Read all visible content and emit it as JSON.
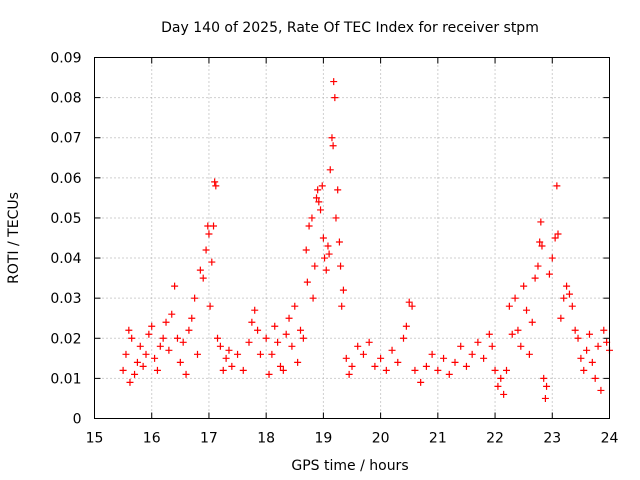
{
  "chart_data": {
    "type": "scatter",
    "title": "Day 140 of 2025, Rate Of TEC Index for receiver stpm",
    "xlabel": "GPS time / hours",
    "ylabel": "ROTI / TECUs",
    "xlim": [
      15,
      24
    ],
    "ylim": [
      0,
      0.09
    ],
    "xticks": [
      15,
      16,
      17,
      18,
      19,
      20,
      21,
      22,
      23,
      24
    ],
    "xtick_labels": [
      "15",
      "16",
      "17",
      "18",
      "19",
      "20",
      "21",
      "22",
      "23",
      "24"
    ],
    "yticks": [
      0,
      0.01,
      0.02,
      0.03,
      0.04,
      0.05,
      0.06,
      0.07,
      0.08,
      0.09
    ],
    "ytick_labels": [
      "0",
      "0.01",
      "0.02",
      "0.03",
      "0.04",
      "0.05",
      "0.06",
      "0.07",
      "0.08",
      "0.09"
    ],
    "grid": true,
    "marker": "+",
    "marker_color": "#ff0000",
    "series": [
      {
        "name": "ROTI",
        "points": [
          [
            15.5,
            0.012
          ],
          [
            15.55,
            0.016
          ],
          [
            15.6,
            0.022
          ],
          [
            15.62,
            0.009
          ],
          [
            15.65,
            0.02
          ],
          [
            15.7,
            0.011
          ],
          [
            15.75,
            0.014
          ],
          [
            15.8,
            0.018
          ],
          [
            15.85,
            0.013
          ],
          [
            15.9,
            0.016
          ],
          [
            15.95,
            0.021
          ],
          [
            16.0,
            0.023
          ],
          [
            16.05,
            0.015
          ],
          [
            16.1,
            0.012
          ],
          [
            16.15,
            0.018
          ],
          [
            16.2,
            0.02
          ],
          [
            16.25,
            0.024
          ],
          [
            16.3,
            0.017
          ],
          [
            16.35,
            0.026
          ],
          [
            16.4,
            0.033
          ],
          [
            16.45,
            0.02
          ],
          [
            16.5,
            0.014
          ],
          [
            16.55,
            0.019
          ],
          [
            16.6,
            0.011
          ],
          [
            16.65,
            0.022
          ],
          [
            16.7,
            0.025
          ],
          [
            16.75,
            0.03
          ],
          [
            16.8,
            0.016
          ],
          [
            16.85,
            0.037
          ],
          [
            16.9,
            0.035
          ],
          [
            16.95,
            0.042
          ],
          [
            16.98,
            0.048
          ],
          [
            17.0,
            0.046
          ],
          [
            17.02,
            0.028
          ],
          [
            17.05,
            0.039
          ],
          [
            17.08,
            0.048
          ],
          [
            17.1,
            0.059
          ],
          [
            17.12,
            0.058
          ],
          [
            17.15,
            0.02
          ],
          [
            17.2,
            0.018
          ],
          [
            17.25,
            0.012
          ],
          [
            17.3,
            0.015
          ],
          [
            17.35,
            0.017
          ],
          [
            17.4,
            0.013
          ],
          [
            17.5,
            0.016
          ],
          [
            17.6,
            0.012
          ],
          [
            17.7,
            0.019
          ],
          [
            17.75,
            0.024
          ],
          [
            17.8,
            0.027
          ],
          [
            17.85,
            0.022
          ],
          [
            17.9,
            0.016
          ],
          [
            18.0,
            0.02
          ],
          [
            18.05,
            0.011
          ],
          [
            18.1,
            0.016
          ],
          [
            18.15,
            0.023
          ],
          [
            18.2,
            0.019
          ],
          [
            18.25,
            0.013
          ],
          [
            18.3,
            0.012
          ],
          [
            18.35,
            0.021
          ],
          [
            18.4,
            0.025
          ],
          [
            18.45,
            0.018
          ],
          [
            18.5,
            0.028
          ],
          [
            18.55,
            0.014
          ],
          [
            18.6,
            0.022
          ],
          [
            18.65,
            0.02
          ],
          [
            18.7,
            0.042
          ],
          [
            18.72,
            0.034
          ],
          [
            18.75,
            0.048
          ],
          [
            18.8,
            0.05
          ],
          [
            18.82,
            0.03
          ],
          [
            18.85,
            0.038
          ],
          [
            18.88,
            0.055
          ],
          [
            18.9,
            0.057
          ],
          [
            18.92,
            0.054
          ],
          [
            18.95,
            0.052
          ],
          [
            18.98,
            0.058
          ],
          [
            19.0,
            0.045
          ],
          [
            19.02,
            0.04
          ],
          [
            19.05,
            0.037
          ],
          [
            19.08,
            0.043
          ],
          [
            19.1,
            0.041
          ],
          [
            19.12,
            0.062
          ],
          [
            19.15,
            0.07
          ],
          [
            19.17,
            0.068
          ],
          [
            19.18,
            0.084
          ],
          [
            19.2,
            0.08
          ],
          [
            19.22,
            0.05
          ],
          [
            19.25,
            0.057
          ],
          [
            19.28,
            0.044
          ],
          [
            19.3,
            0.038
          ],
          [
            19.32,
            0.028
          ],
          [
            19.35,
            0.032
          ],
          [
            19.4,
            0.015
          ],
          [
            19.45,
            0.011
          ],
          [
            19.5,
            0.013
          ],
          [
            19.6,
            0.018
          ],
          [
            19.7,
            0.016
          ],
          [
            19.8,
            0.019
          ],
          [
            19.9,
            0.013
          ],
          [
            20.0,
            0.015
          ],
          [
            20.1,
            0.012
          ],
          [
            20.2,
            0.017
          ],
          [
            20.3,
            0.014
          ],
          [
            20.4,
            0.02
          ],
          [
            20.45,
            0.023
          ],
          [
            20.5,
            0.029
          ],
          [
            20.55,
            0.028
          ],
          [
            20.6,
            0.012
          ],
          [
            20.7,
            0.009
          ],
          [
            20.8,
            0.013
          ],
          [
            20.9,
            0.016
          ],
          [
            21.0,
            0.012
          ],
          [
            21.1,
            0.015
          ],
          [
            21.2,
            0.011
          ],
          [
            21.3,
            0.014
          ],
          [
            21.4,
            0.018
          ],
          [
            21.5,
            0.013
          ],
          [
            21.6,
            0.016
          ],
          [
            21.7,
            0.019
          ],
          [
            21.8,
            0.015
          ],
          [
            21.9,
            0.021
          ],
          [
            21.95,
            0.018
          ],
          [
            22.0,
            0.012
          ],
          [
            22.05,
            0.008
          ],
          [
            22.1,
            0.01
          ],
          [
            22.15,
            0.006
          ],
          [
            22.2,
            0.012
          ],
          [
            22.25,
            0.028
          ],
          [
            22.3,
            0.021
          ],
          [
            22.35,
            0.03
          ],
          [
            22.4,
            0.022
          ],
          [
            22.45,
            0.018
          ],
          [
            22.5,
            0.033
          ],
          [
            22.55,
            0.027
          ],
          [
            22.6,
            0.016
          ],
          [
            22.65,
            0.024
          ],
          [
            22.7,
            0.035
          ],
          [
            22.75,
            0.038
          ],
          [
            22.78,
            0.044
          ],
          [
            22.8,
            0.049
          ],
          [
            22.82,
            0.043
          ],
          [
            22.85,
            0.01
          ],
          [
            22.88,
            0.005
          ],
          [
            22.9,
            0.008
          ],
          [
            22.95,
            0.036
          ],
          [
            23.0,
            0.04
          ],
          [
            23.05,
            0.045
          ],
          [
            23.08,
            0.058
          ],
          [
            23.1,
            0.046
          ],
          [
            23.15,
            0.025
          ],
          [
            23.2,
            0.03
          ],
          [
            23.25,
            0.033
          ],
          [
            23.3,
            0.031
          ],
          [
            23.35,
            0.028
          ],
          [
            23.4,
            0.022
          ],
          [
            23.45,
            0.02
          ],
          [
            23.5,
            0.015
          ],
          [
            23.55,
            0.012
          ],
          [
            23.6,
            0.017
          ],
          [
            23.65,
            0.021
          ],
          [
            23.7,
            0.014
          ],
          [
            23.75,
            0.01
          ],
          [
            23.8,
            0.018
          ],
          [
            23.85,
            0.007
          ],
          [
            23.9,
            0.022
          ],
          [
            23.95,
            0.019
          ],
          [
            24.0,
            0.017
          ]
        ]
      }
    ]
  }
}
